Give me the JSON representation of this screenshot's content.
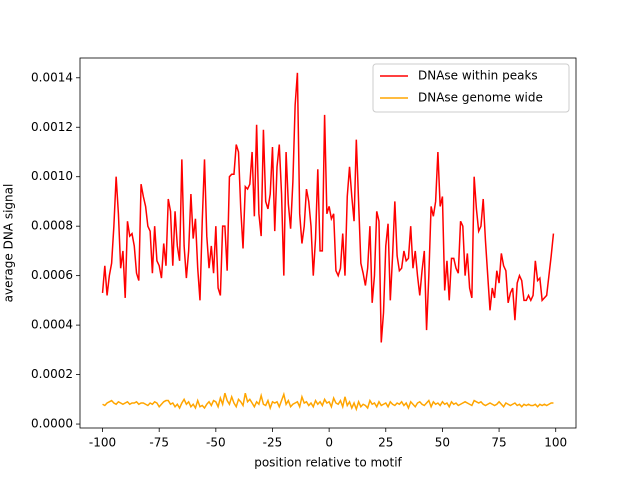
{
  "chart_data": {
    "type": "line",
    "xlabel": "position relative to motif",
    "ylabel": "average DNA signal",
    "x": [
      -100,
      -99,
      -98,
      -97,
      -96,
      -95,
      -94,
      -93,
      -92,
      -91,
      -90,
      -89,
      -88,
      -87,
      -86,
      -85,
      -84,
      -83,
      -82,
      -81,
      -80,
      -79,
      -78,
      -77,
      -76,
      -75,
      -74,
      -73,
      -72,
      -71,
      -70,
      -69,
      -68,
      -67,
      -66,
      -65,
      -64,
      -63,
      -62,
      -61,
      -60,
      -59,
      -58,
      -57,
      -56,
      -55,
      -54,
      -53,
      -52,
      -51,
      -50,
      -49,
      -48,
      -47,
      -46,
      -45,
      -44,
      -43,
      -42,
      -41,
      -40,
      -39,
      -38,
      -37,
      -36,
      -35,
      -34,
      -33,
      -32,
      -31,
      -30,
      -29,
      -28,
      -27,
      -26,
      -25,
      -24,
      -23,
      -22,
      -21,
      -20,
      -19,
      -18,
      -17,
      -16,
      -15,
      -14,
      -13,
      -12,
      -11,
      -10,
      -9,
      -8,
      -7,
      -6,
      -5,
      -4,
      -3,
      -2,
      -1,
      0,
      1,
      2,
      3,
      4,
      5,
      6,
      7,
      8,
      9,
      10,
      11,
      12,
      13,
      14,
      15,
      16,
      17,
      18,
      19,
      20,
      21,
      22,
      23,
      24,
      25,
      26,
      27,
      28,
      29,
      30,
      31,
      32,
      33,
      34,
      35,
      36,
      37,
      38,
      39,
      40,
      41,
      42,
      43,
      44,
      45,
      46,
      47,
      48,
      49,
      50,
      51,
      52,
      53,
      54,
      55,
      56,
      57,
      58,
      59,
      60,
      61,
      62,
      63,
      64,
      65,
      66,
      67,
      68,
      69,
      70,
      71,
      72,
      73,
      74,
      75,
      76,
      77,
      78,
      79,
      80,
      81,
      82,
      83,
      84,
      85,
      86,
      87,
      88,
      89,
      90,
      91,
      92,
      93,
      94,
      95,
      96,
      97,
      98,
      99
    ],
    "series": [
      {
        "name": "DNAse within peaks",
        "color": "#ff0000",
        "values": [
          0.00053,
          0.00064,
          0.00052,
          0.0006,
          0.00065,
          0.0008,
          0.001,
          0.00085,
          0.00063,
          0.0007,
          0.00051,
          0.00082,
          0.00076,
          0.00077,
          0.00072,
          0.00061,
          0.00058,
          0.00097,
          0.00092,
          0.00088,
          0.0008,
          0.00078,
          0.00061,
          0.0008,
          0.00066,
          0.00064,
          0.00059,
          0.00073,
          0.00064,
          0.00091,
          0.00086,
          0.00064,
          0.00086,
          0.00072,
          0.00066,
          0.00107,
          0.00072,
          0.00059,
          0.0007,
          0.00093,
          0.00075,
          0.00083,
          0.00063,
          0.0005,
          0.00082,
          0.00107,
          0.00076,
          0.00063,
          0.00072,
          0.00061,
          0.0008,
          0.00055,
          0.00052,
          0.0008,
          0.0008,
          0.00062,
          0.001,
          0.00101,
          0.00101,
          0.00113,
          0.0011,
          0.00087,
          0.00071,
          0.00096,
          0.00095,
          0.00097,
          0.0011,
          0.00084,
          0.00121,
          0.00085,
          0.00076,
          0.00119,
          0.0009,
          0.00087,
          0.00093,
          0.00112,
          0.00078,
          0.00104,
          0.00113,
          0.00093,
          0.0006,
          0.0011,
          0.00089,
          0.00079,
          0.00098,
          0.00129,
          0.00142,
          0.00085,
          0.00073,
          0.0008,
          0.00095,
          0.0009,
          0.0008,
          0.0006,
          0.00075,
          0.00103,
          0.0007,
          0.0007,
          0.00125,
          0.00085,
          0.00088,
          0.00083,
          0.00085,
          0.00062,
          0.0006,
          0.00063,
          0.00077,
          0.0006,
          0.00092,
          0.00104,
          0.00092,
          0.00082,
          0.00115,
          0.0009,
          0.00065,
          0.00061,
          0.00056,
          0.00063,
          0.0008,
          0.00049,
          0.0006,
          0.00086,
          0.00082,
          0.00033,
          0.00045,
          0.00072,
          0.00081,
          0.0005,
          0.00068,
          0.0009,
          0.00068,
          0.00062,
          0.00063,
          0.0007,
          0.00066,
          0.00067,
          0.0008,
          0.00063,
          0.0007,
          0.0006,
          0.00052,
          0.00062,
          0.0007,
          0.00038,
          0.0006,
          0.00088,
          0.00084,
          0.0009,
          0.0011,
          0.00088,
          0.00092,
          0.00054,
          0.00066,
          0.0005,
          0.00067,
          0.00067,
          0.00063,
          0.00061,
          0.00082,
          0.0008,
          0.0006,
          0.00069,
          0.00055,
          0.00051,
          0.001,
          0.00087,
          0.00078,
          0.0008,
          0.00091,
          0.00074,
          0.0006,
          0.00046,
          0.00055,
          0.00051,
          0.00062,
          0.00057,
          0.00069,
          0.00064,
          0.00062,
          0.00049,
          0.00053,
          0.00055,
          0.00042,
          0.00057,
          0.0006,
          0.00058,
          0.0005,
          0.0005,
          0.00052,
          0.0005,
          0.00052,
          0.00066,
          0.00058,
          0.00059,
          0.0005,
          0.00051,
          0.00052,
          0.0006,
          0.00068,
          0.00077
        ]
      },
      {
        "name": "DNAse genome wide",
        "color": "#ffa500",
        "values": [
          8e-05,
          7.5e-05,
          8.5e-05,
          9e-05,
          9.5e-05,
          8.5e-05,
          8e-05,
          9e-05,
          8.5e-05,
          8e-05,
          8.5e-05,
          9e-05,
          8e-05,
          8.5e-05,
          8.5e-05,
          9e-05,
          8e-05,
          8.5e-05,
          8.5e-05,
          8e-05,
          7.5e-05,
          8.5e-05,
          8e-05,
          9e-05,
          8.5e-05,
          7e-05,
          8e-05,
          9e-05,
          9.5e-05,
          9.5e-05,
          8e-05,
          8.5e-05,
          7e-05,
          8e-05,
          6.5e-05,
          8.5e-05,
          0.0001,
          8e-05,
          9e-05,
          7e-05,
          8e-05,
          6.5e-05,
          9.5e-05,
          7e-05,
          7.5e-05,
          6.5e-05,
          8e-05,
          9e-05,
          7.5e-05,
          9.5e-05,
          9e-05,
          7e-05,
          0.000105,
          8e-05,
          0.000125,
          9.5e-05,
          8e-05,
          0.00011,
          8.5e-05,
          7e-05,
          0.0001,
          9e-05,
          7.5e-05,
          0.000125,
          9e-05,
          0.0001,
          8.5e-05,
          7e-05,
          9e-05,
          8e-05,
          0.000115,
          8e-05,
          7.5e-05,
          9.5e-05,
          6.5e-05,
          9e-05,
          8.5e-05,
          9e-05,
          7e-05,
          9.5e-05,
          0.00012,
          8e-05,
          9.5e-05,
          7e-05,
          8e-05,
          8.5e-05,
          9e-05,
          7e-05,
          0.00011,
          8.5e-05,
          9e-05,
          7.5e-05,
          8.5e-05,
          7e-05,
          9.5e-05,
          8e-05,
          9e-05,
          7.5e-05,
          0.0001,
          8.5e-05,
          9e-05,
          7e-05,
          0.000105,
          8.5e-05,
          8e-05,
          9.5e-05,
          7e-05,
          0.00011,
          7.5e-05,
          9e-05,
          6.5e-05,
          8.5e-05,
          6e-05,
          9e-05,
          7e-05,
          8e-05,
          7.5e-05,
          6.5e-05,
          9.5e-05,
          8e-05,
          8.5e-05,
          7e-05,
          9e-05,
          7.5e-05,
          8e-05,
          8.5e-05,
          7e-05,
          9e-05,
          8e-05,
          7.5e-05,
          8.5e-05,
          8e-05,
          9e-05,
          7.5e-05,
          8.5e-05,
          6.5e-05,
          9e-05,
          8e-05,
          7e-05,
          8.5e-05,
          9e-05,
          8e-05,
          7.5e-05,
          8.5e-05,
          9.5e-05,
          7e-05,
          9e-05,
          8e-05,
          8.5e-05,
          7.5e-05,
          9e-05,
          8e-05,
          8.5e-05,
          7e-05,
          9e-05,
          8e-05,
          8.5e-05,
          7.5e-05,
          8e-05,
          8.5e-05,
          9e-05,
          8.5e-05,
          8e-05,
          7.5e-05,
          9.5e-05,
          9e-05,
          8.5e-05,
          9e-05,
          8e-05,
          7.5e-05,
          8e-05,
          8.5e-05,
          8e-05,
          7.5e-05,
          8e-05,
          9e-05,
          8e-05,
          7e-05,
          8.5e-05,
          8e-05,
          7.5e-05,
          8e-05,
          8.5e-05,
          7.5e-05,
          8e-05,
          7e-05,
          8e-05,
          7.5e-05,
          8e-05,
          7.5e-05,
          7.5e-05,
          8e-05,
          7e-05,
          8e-05,
          7.5e-05,
          8e-05,
          7.5e-05,
          8e-05,
          8.5e-05,
          8.5e-05
        ]
      }
    ],
    "xlim": [
      -109.95,
      108.95
    ],
    "xticks": [
      -100,
      -75,
      -50,
      -25,
      0,
      25,
      50,
      75,
      100
    ],
    "ylim": [
      -1.6e-05,
      0.00148
    ],
    "yticks": [
      {
        "value": 0,
        "label": "0.0000"
      },
      {
        "value": 0.0002,
        "label": "0.0002"
      },
      {
        "value": 0.0004,
        "label": "0.0004"
      },
      {
        "value": 0.0006,
        "label": "0.0006"
      },
      {
        "value": 0.0008,
        "label": "0.0008"
      },
      {
        "value": 0.001,
        "label": "0.0010"
      },
      {
        "value": 0.0012,
        "label": "0.0012"
      },
      {
        "value": 0.0014,
        "label": "0.0014"
      }
    ],
    "grid": false,
    "legend": "upper right"
  }
}
